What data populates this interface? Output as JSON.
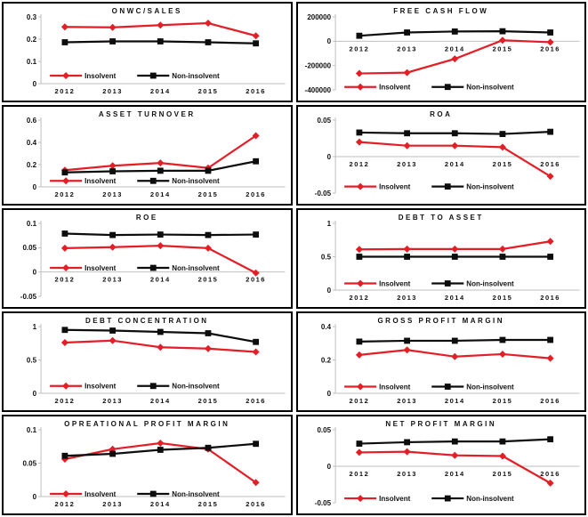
{
  "page": {
    "background": "#ffffff",
    "axis_color": "#bfbfbf",
    "text_color": "#111111"
  },
  "legend": {
    "items": [
      {
        "label": "Insolvent",
        "color": "#e41e26",
        "marker": "diamond"
      },
      {
        "label": "Non-insolvent",
        "color": "#0d0d0d",
        "marker": "square"
      }
    ]
  },
  "chart_data": [
    {
      "type": "line",
      "title": "ONWC/SALES",
      "x": [
        "2012",
        "2013",
        "2014",
        "2015",
        "2016"
      ],
      "ylim": [
        0,
        0.3
      ],
      "yticks": [
        0,
        0.1,
        0.2,
        0.3
      ],
      "ytick_labels": [
        "0",
        "0.1",
        "0.2",
        "0.3"
      ],
      "grid": false,
      "legend_position": "inside-bottom-left",
      "legend_y_frac": 0.88,
      "series": [
        {
          "name": "Insolvent",
          "values": [
            0.255,
            0.253,
            0.263,
            0.272,
            0.215
          ]
        },
        {
          "name": "Non-insolvent",
          "values": [
            0.186,
            0.19,
            0.19,
            0.186,
            0.181
          ]
        }
      ]
    },
    {
      "type": "line",
      "title": "FREE CASH FLOW",
      "x": [
        "2012",
        "2013",
        "2014",
        "2015",
        "2016"
      ],
      "ylim": [
        -400000,
        200000
      ],
      "yticks": [
        -400000,
        -200000,
        0,
        200000
      ],
      "ytick_labels": [
        "-400000",
        "-200000",
        "0",
        "200000"
      ],
      "grid": false,
      "legend_position": "inside-bottom-left",
      "legend_y_frac": 0.96,
      "series": [
        {
          "name": "Insolvent",
          "values": [
            -265000,
            -258000,
            -145000,
            8000,
            -8000
          ]
        },
        {
          "name": "Non-insolvent",
          "values": [
            45000,
            72000,
            80000,
            82000,
            72000
          ]
        }
      ]
    },
    {
      "type": "line",
      "title": "ASSET TURNOVER",
      "x": [
        "2012",
        "2013",
        "2014",
        "2015",
        "2016"
      ],
      "ylim": [
        0,
        0.6
      ],
      "yticks": [
        0,
        0.2,
        0.4,
        0.6
      ],
      "ytick_labels": [
        "0",
        "0.2",
        "0.4",
        "0.6"
      ],
      "grid": false,
      "legend_position": "inside-bottom-left",
      "legend_y_frac": 0.91,
      "series": [
        {
          "name": "Insolvent",
          "values": [
            0.15,
            0.19,
            0.215,
            0.17,
            0.46
          ]
        },
        {
          "name": "Non-insolvent",
          "values": [
            0.13,
            0.14,
            0.145,
            0.145,
            0.23
          ]
        }
      ]
    },
    {
      "type": "line",
      "title": "ROA",
      "x": [
        "2012",
        "2013",
        "2014",
        "2015",
        "2016"
      ],
      "ylim": [
        -0.05,
        0.05
      ],
      "yticks": [
        -0.05,
        0,
        0.05
      ],
      "ytick_labels": [
        "-0.05",
        "0",
        "0.05"
      ],
      "grid": false,
      "legend_position": "inside-bottom-left",
      "legend_y_frac": 0.91,
      "series": [
        {
          "name": "Insolvent",
          "values": [
            0.02,
            0.015,
            0.015,
            0.013,
            -0.027
          ]
        },
        {
          "name": "Non-insolvent",
          "values": [
            0.033,
            0.032,
            0.032,
            0.031,
            0.034
          ]
        }
      ]
    },
    {
      "type": "line",
      "title": "ROE",
      "x": [
        "2012",
        "2013",
        "2014",
        "2015",
        "2016"
      ],
      "ylim": [
        -0.05,
        0.1
      ],
      "yticks": [
        -0.05,
        0,
        0.05,
        0.1
      ],
      "ytick_labels": [
        "-0.05",
        "0",
        "0.05",
        "0.1"
      ],
      "grid": false,
      "legend_position": "inside-middle-left",
      "legend_y_frac": 0.61,
      "series": [
        {
          "name": "Insolvent",
          "values": [
            0.049,
            0.051,
            0.054,
            0.049,
            -0.002
          ]
        },
        {
          "name": "Non-insolvent",
          "values": [
            0.079,
            0.076,
            0.077,
            0.076,
            0.077
          ]
        }
      ]
    },
    {
      "type": "line",
      "title": "DEBT TO ASSET",
      "x": [
        "2012",
        "2013",
        "2014",
        "2015",
        "2016"
      ],
      "ylim": [
        0,
        1
      ],
      "yticks": [
        0,
        0.5,
        1
      ],
      "ytick_labels": [
        "0",
        "0.5",
        "1"
      ],
      "grid": false,
      "legend_position": "inside-bottom-left",
      "legend_y_frac": 0.9,
      "series": [
        {
          "name": "Insolvent",
          "values": [
            0.61,
            0.615,
            0.615,
            0.615,
            0.73
          ]
        },
        {
          "name": "Non-insolvent",
          "values": [
            0.5,
            0.5,
            0.5,
            0.5,
            0.5
          ]
        }
      ]
    },
    {
      "type": "line",
      "title": "DEBT CONCENTRATION",
      "x": [
        "2012",
        "2013",
        "2014",
        "2015",
        "2016"
      ],
      "ylim": [
        0,
        1
      ],
      "yticks": [
        0,
        0.5,
        1
      ],
      "ytick_labels": [
        "0",
        "0.5",
        "1"
      ],
      "grid": false,
      "legend_position": "inside-bottom-left",
      "legend_y_frac": 0.89,
      "series": [
        {
          "name": "Insolvent",
          "values": [
            0.76,
            0.79,
            0.69,
            0.67,
            0.62
          ]
        },
        {
          "name": "Non-insolvent",
          "values": [
            0.95,
            0.94,
            0.92,
            0.9,
            0.77
          ]
        }
      ]
    },
    {
      "type": "line",
      "title": "GROSS PROFIT MARGIN",
      "x": [
        "2012",
        "2013",
        "2014",
        "2015",
        "2016"
      ],
      "ylim": [
        0,
        0.4
      ],
      "yticks": [
        0,
        0.2,
        0.4
      ],
      "ytick_labels": [
        "0",
        "0.2",
        "0.4"
      ],
      "grid": false,
      "legend_position": "inside-bottom-left",
      "legend_y_frac": 0.9,
      "series": [
        {
          "name": "Insolvent",
          "values": [
            0.23,
            0.26,
            0.22,
            0.235,
            0.21
          ]
        },
        {
          "name": "Non-insolvent",
          "values": [
            0.31,
            0.315,
            0.315,
            0.32,
            0.32
          ]
        }
      ]
    },
    {
      "type": "line",
      "title": "OPREATIONAL PROFIT MARGIN",
      "x": [
        "2012",
        "2013",
        "2014",
        "2015",
        "2016"
      ],
      "ylim": [
        0,
        0.1
      ],
      "yticks": [
        0,
        0.05,
        0.1
      ],
      "ytick_labels": [
        "0",
        "0.05",
        "0.1"
      ],
      "grid": false,
      "legend_position": "inside-bottom-left",
      "legend_y_frac": 0.96,
      "series": [
        {
          "name": "Insolvent",
          "values": [
            0.056,
            0.071,
            0.08,
            0.071,
            0.021
          ]
        },
        {
          "name": "Non-insolvent",
          "values": [
            0.061,
            0.064,
            0.07,
            0.073,
            0.079
          ]
        }
      ]
    },
    {
      "type": "line",
      "title": "NET PROFIT MARGIN",
      "x": [
        "2012",
        "2013",
        "2014",
        "2015",
        "2016"
      ],
      "ylim": [
        -0.05,
        0.05
      ],
      "yticks": [
        -0.05,
        0,
        0.05
      ],
      "ytick_labels": [
        "-0.05",
        "0",
        "0.05"
      ],
      "grid": false,
      "legend_position": "inside-bottom-left",
      "legend_y_frac": 0.94,
      "series": [
        {
          "name": "Insolvent",
          "values": [
            0.019,
            0.02,
            0.015,
            0.014,
            -0.023
          ]
        },
        {
          "name": "Non-insolvent",
          "values": [
            0.031,
            0.033,
            0.034,
            0.034,
            0.037
          ]
        }
      ]
    }
  ]
}
